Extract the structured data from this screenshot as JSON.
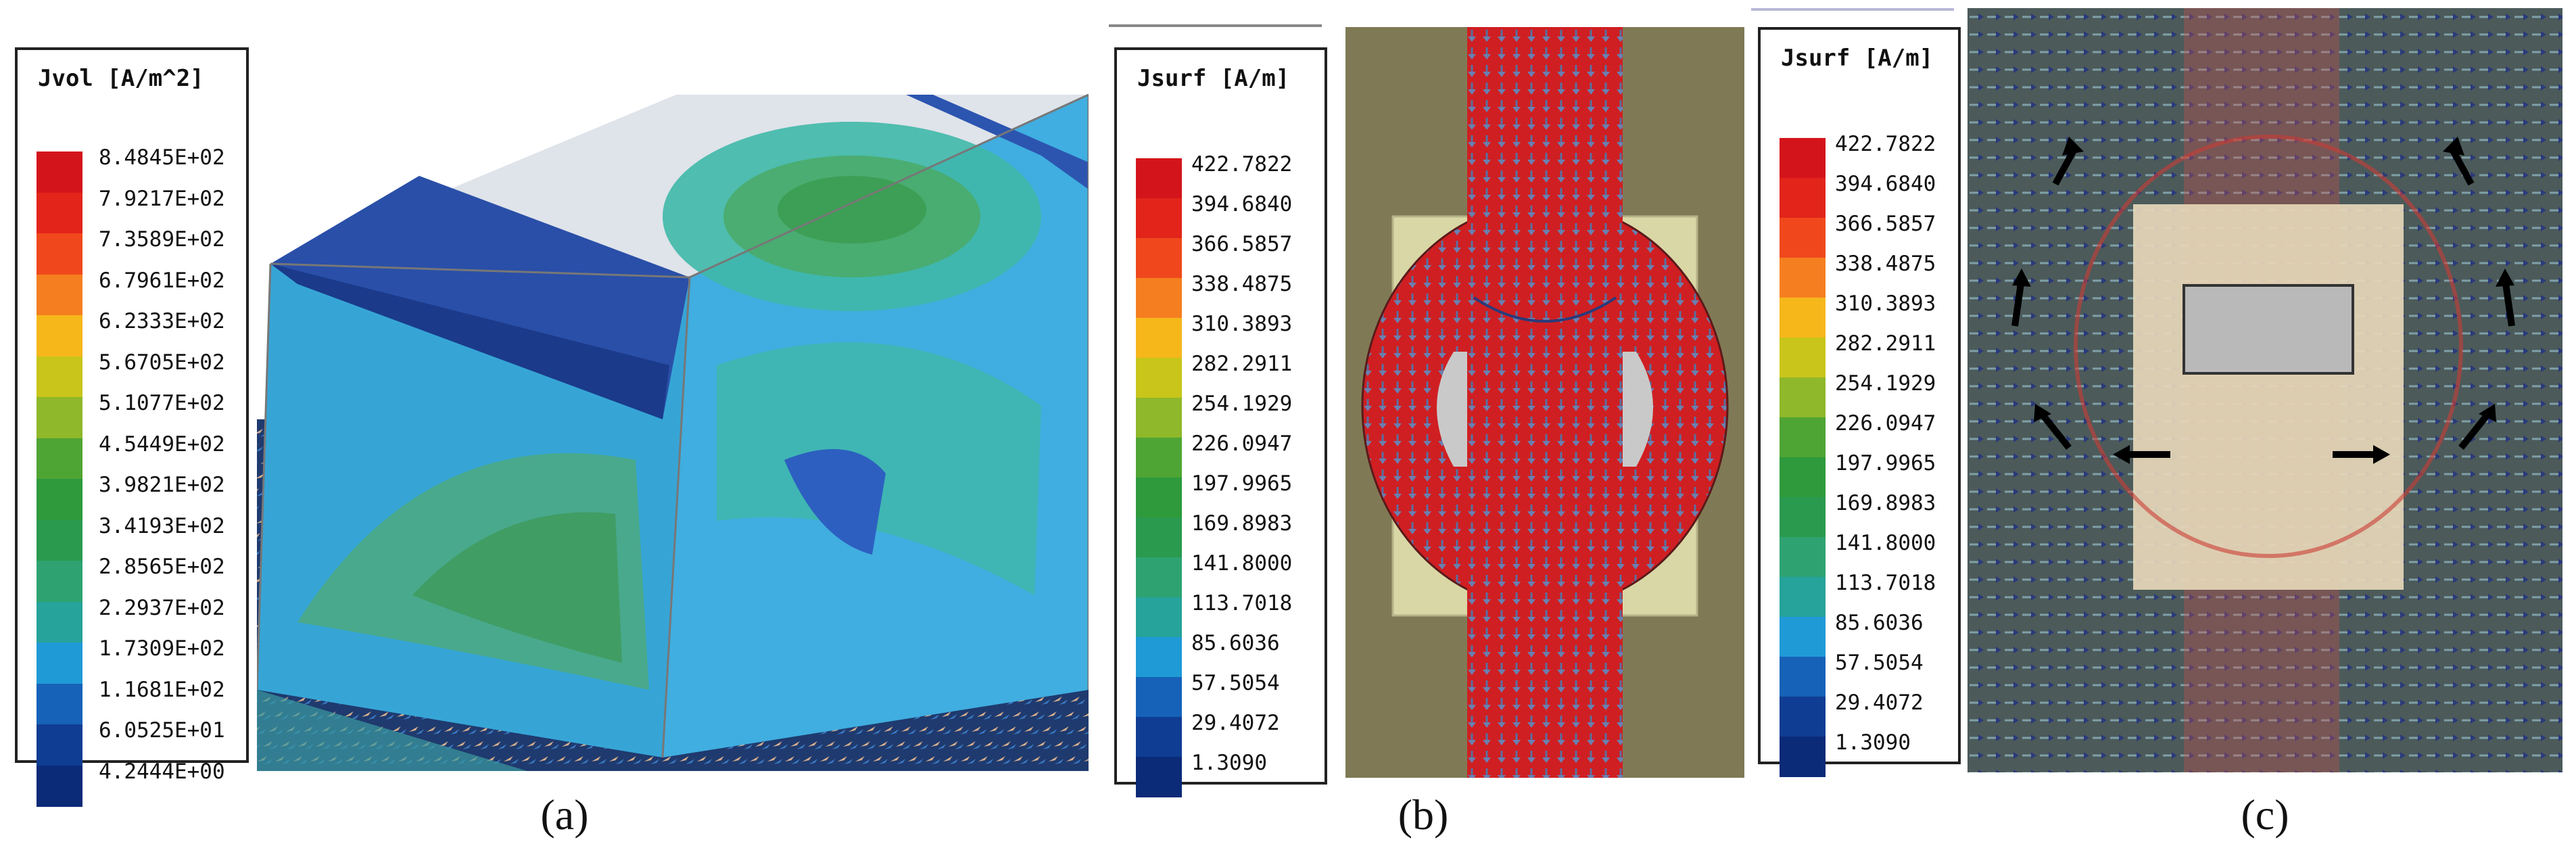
{
  "panels": [
    {
      "id": "a",
      "caption": "(a)",
      "legend_title": "Jvol [A/m^2]",
      "legend_values": [
        "8.4845E+02",
        "7.9217E+02",
        "7.3589E+02",
        "6.7961E+02",
        "6.2333E+02",
        "5.6705E+02",
        "5.1077E+02",
        "4.5449E+02",
        "3.9821E+02",
        "3.4193E+02",
        "2.8565E+02",
        "2.2937E+02",
        "1.7309E+02",
        "1.1681E+02",
        "6.0525E+01",
        "4.2444E+00"
      ]
    },
    {
      "id": "b",
      "caption": "(b)",
      "legend_title": "Jsurf [A/m]",
      "legend_values": [
        "422.7822",
        "394.6840",
        "366.5857",
        "338.4875",
        "310.3893",
        "282.2911",
        "254.1929",
        "226.0947",
        "197.9965",
        "169.8983",
        "141.8000",
        "113.7018",
        "85.6036",
        "57.5054",
        "29.4072",
        "1.3090"
      ]
    },
    {
      "id": "c",
      "caption": "(c)",
      "legend_title": "Jsurf [A/m]",
      "legend_values": [
        "422.7822",
        "394.6840",
        "366.5857",
        "338.4875",
        "310.3893",
        "282.2911",
        "254.1929",
        "226.0947",
        "197.9965",
        "169.8983",
        "141.8000",
        "113.7018",
        "85.6036",
        "57.5054",
        "29.4072",
        "1.3090"
      ]
    }
  ],
  "colormap": [
    "#d4141b",
    "#e3241a",
    "#f0481c",
    "#f57f20",
    "#f6b71b",
    "#c9c51a",
    "#8fb82a",
    "#4fa534",
    "#2e9a3c",
    "#2a9a4e",
    "#2ea371",
    "#26a39a",
    "#1f9ad6",
    "#1662b8",
    "#0f3d93",
    "#0b2a78"
  ]
}
